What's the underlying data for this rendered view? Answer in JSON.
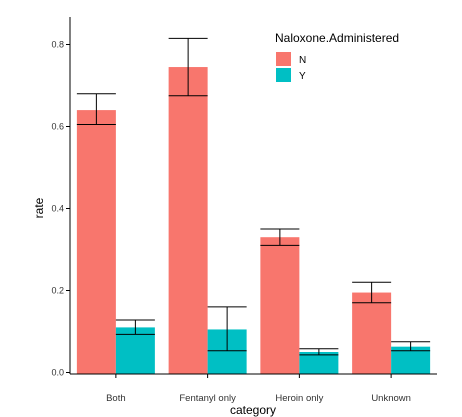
{
  "chart_data": {
    "type": "bar",
    "categories": [
      "Both",
      "Fentanyl only",
      "Heroin only",
      "Unknown"
    ],
    "xlabel": "category",
    "ylabel": "rate",
    "ylim": [
      0,
      0.8
    ],
    "yticks": [
      "0.0",
      "0.2",
      "0.4",
      "0.6",
      "0.8"
    ],
    "grid": false,
    "legend": {
      "title": "Naloxone.Administered",
      "position": "top-right"
    },
    "series": [
      {
        "name": "N",
        "color": "#F8766D",
        "values": [
          0.64,
          0.745,
          0.33,
          0.195
        ],
        "ci_low": [
          0.605,
          0.675,
          0.31,
          0.17
        ],
        "ci_high": [
          0.68,
          0.815,
          0.35,
          0.22
        ]
      },
      {
        "name": "Y",
        "color": "#00BFC4",
        "values": [
          0.11,
          0.105,
          0.05,
          0.063
        ],
        "ci_low": [
          0.093,
          0.053,
          0.043,
          0.053
        ],
        "ci_high": [
          0.128,
          0.16,
          0.058,
          0.075
        ]
      }
    ]
  }
}
